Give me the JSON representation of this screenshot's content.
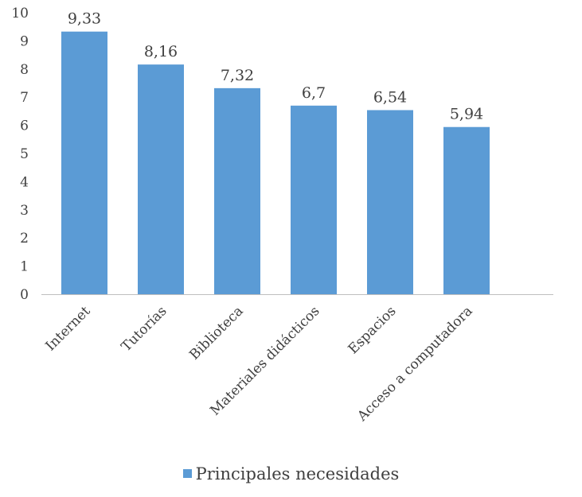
{
  "chart_data": {
    "type": "bar",
    "categories": [
      "Internet",
      "Tutorías",
      "Biblioteca",
      "Materiales didácticos",
      "Espacios",
      "Acceso a computadora"
    ],
    "series": [
      {
        "name": "Principales necesidades",
        "values": [
          9.33,
          8.16,
          7.32,
          6.7,
          6.54,
          5.94
        ],
        "value_labels": [
          "9,33",
          "8,16",
          "7,32",
          "6,7",
          "6,54",
          "5,94"
        ],
        "color": "#5B9BD5"
      }
    ],
    "y_ticks": [
      "0",
      "1",
      "2",
      "3",
      "4",
      "5",
      "6",
      "7",
      "8",
      "9",
      "10"
    ],
    "ylim": [
      0,
      10
    ],
    "grid": false,
    "legend_position": "bottom",
    "colors": {
      "bar": "#5B9BD5",
      "axis": "#BFBFBF",
      "text": "#404040"
    }
  }
}
